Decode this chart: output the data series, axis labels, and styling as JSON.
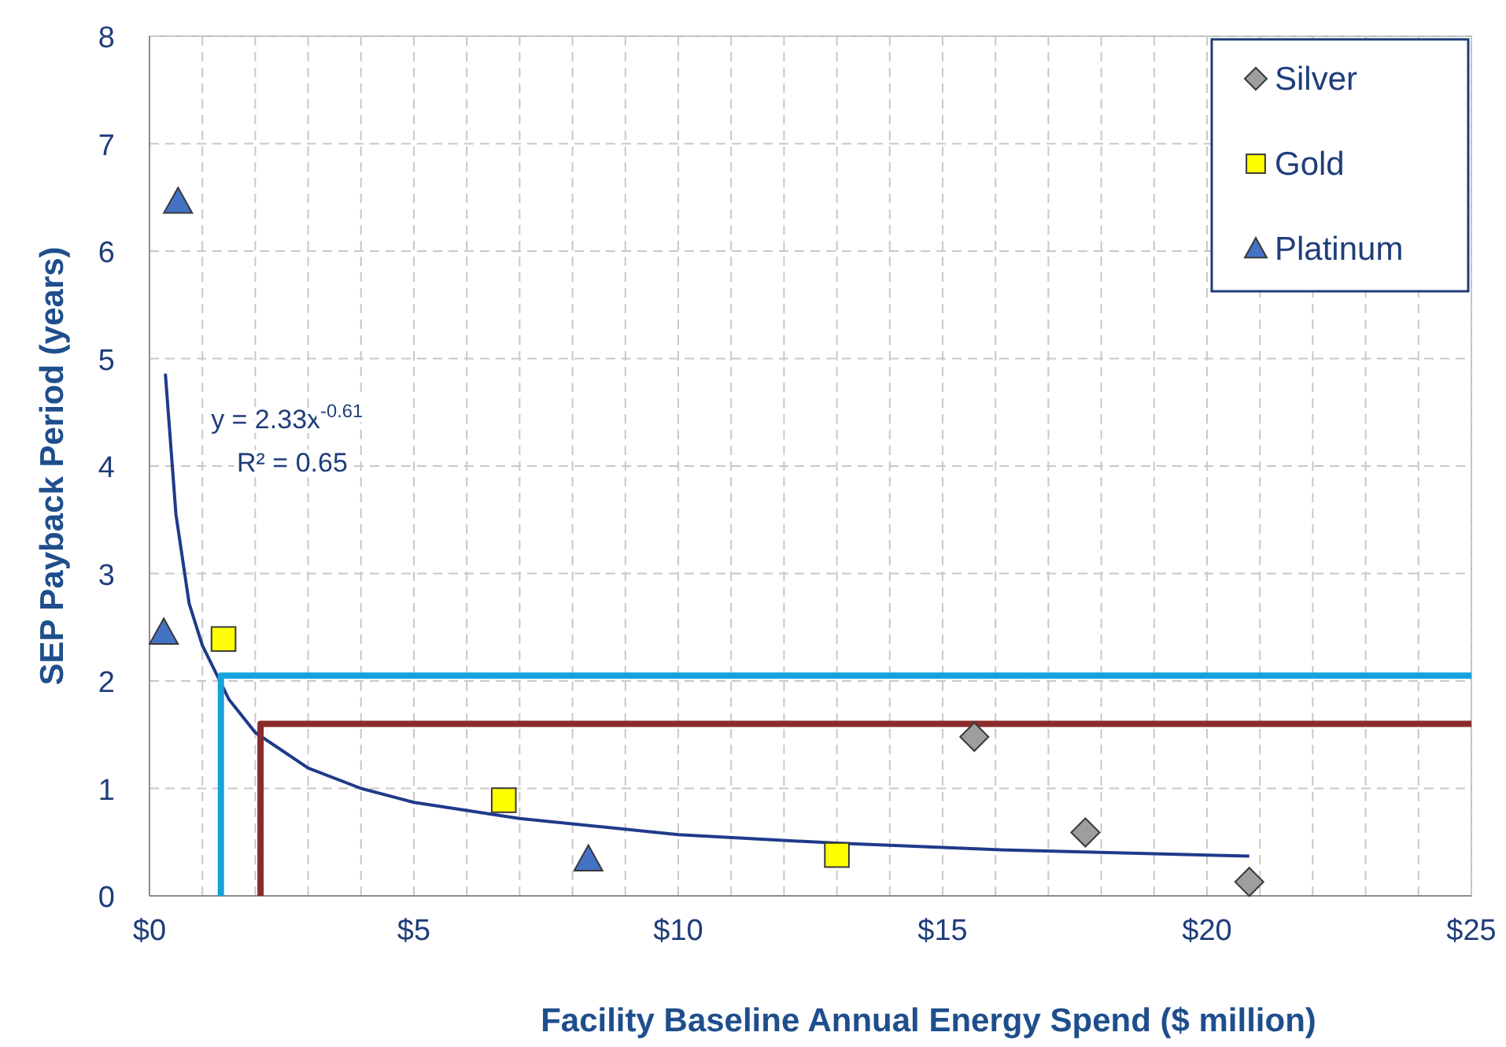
{
  "chart_data": {
    "type": "scatter",
    "xlabel": "Facility Baseline Annual Energy Spend ($ million)",
    "ylabel": "SEP Payback Period (years)",
    "xlim": [
      0,
      25
    ],
    "ylim": [
      0,
      8
    ],
    "xticks": [
      {
        "value": 0,
        "label": "$0"
      },
      {
        "value": 1,
        "label": null
      },
      {
        "value": 2,
        "label": null
      },
      {
        "value": 3,
        "label": null
      },
      {
        "value": 4,
        "label": null
      },
      {
        "value": 5,
        "label": "$5"
      },
      {
        "value": 6,
        "label": null
      },
      {
        "value": 7,
        "label": null
      },
      {
        "value": 8,
        "label": null
      },
      {
        "value": 9,
        "label": null
      },
      {
        "value": 10,
        "label": "$10"
      },
      {
        "value": 11,
        "label": null
      },
      {
        "value": 12,
        "label": null
      },
      {
        "value": 13,
        "label": null
      },
      {
        "value": 14,
        "label": null
      },
      {
        "value": 15,
        "label": "$15"
      },
      {
        "value": 16,
        "label": null
      },
      {
        "value": 17,
        "label": null
      },
      {
        "value": 18,
        "label": null
      },
      {
        "value": 19,
        "label": null
      },
      {
        "value": 20,
        "label": "$20"
      },
      {
        "value": 21,
        "label": null
      },
      {
        "value": 22,
        "label": null
      },
      {
        "value": 23,
        "label": null
      },
      {
        "value": 24,
        "label": null
      },
      {
        "value": 25,
        "label": "$25"
      }
    ],
    "yticks": [
      0,
      1,
      2,
      3,
      4,
      5,
      6,
      7,
      8
    ],
    "grid": true,
    "legend": "top right",
    "annotations": [
      "y = 2.33x$^{-0.61}$",
      "R² = 0.65"
    ],
    "series": [
      {
        "type": "line",
        "color": "#1f3a8a",
        "marker": "none",
        "line_style": "solid",
        "x": [
          0.3,
          0.5,
          0.75,
          1,
          1.5,
          2,
          3,
          4,
          5,
          7,
          10,
          13,
          16,
          20.8
        ],
        "values": [
          4.86,
          3.55,
          2.72,
          2.33,
          1.83,
          1.52,
          1.19,
          1.0,
          0.87,
          0.72,
          0.57,
          0.49,
          0.43,
          0.37
        ]
      },
      {
        "type": "line",
        "color": "#17a2dc",
        "marker": "none",
        "line_style": "solid",
        "x": [
          1.35,
          1.35,
          25
        ],
        "values": [
          0,
          2.05,
          2.05
        ]
      },
      {
        "type": "line",
        "color": "#8b2a2a",
        "marker": "none",
        "line_style": "solid",
        "x": [
          2.1,
          2.1,
          25
        ],
        "values": [
          0,
          1.6,
          1.6
        ]
      },
      {
        "name": "Silver",
        "color": "#9e9e9e",
        "marker": "diamond",
        "x": [
          15.6,
          17.7,
          20.8
        ],
        "values": [
          1.48,
          0.59,
          0.13
        ]
      },
      {
        "name": "Gold",
        "color": "#ffff00",
        "marker": "square",
        "x": [
          1.4,
          6.7,
          13.0
        ],
        "values": [
          2.39,
          0.89,
          0.38
        ]
      },
      {
        "name": "Platinum",
        "color": "#4472c4",
        "marker": "triangle",
        "x": [
          0.54,
          0.27,
          8.3
        ],
        "values": [
          6.46,
          2.45,
          0.34
        ]
      }
    ]
  }
}
